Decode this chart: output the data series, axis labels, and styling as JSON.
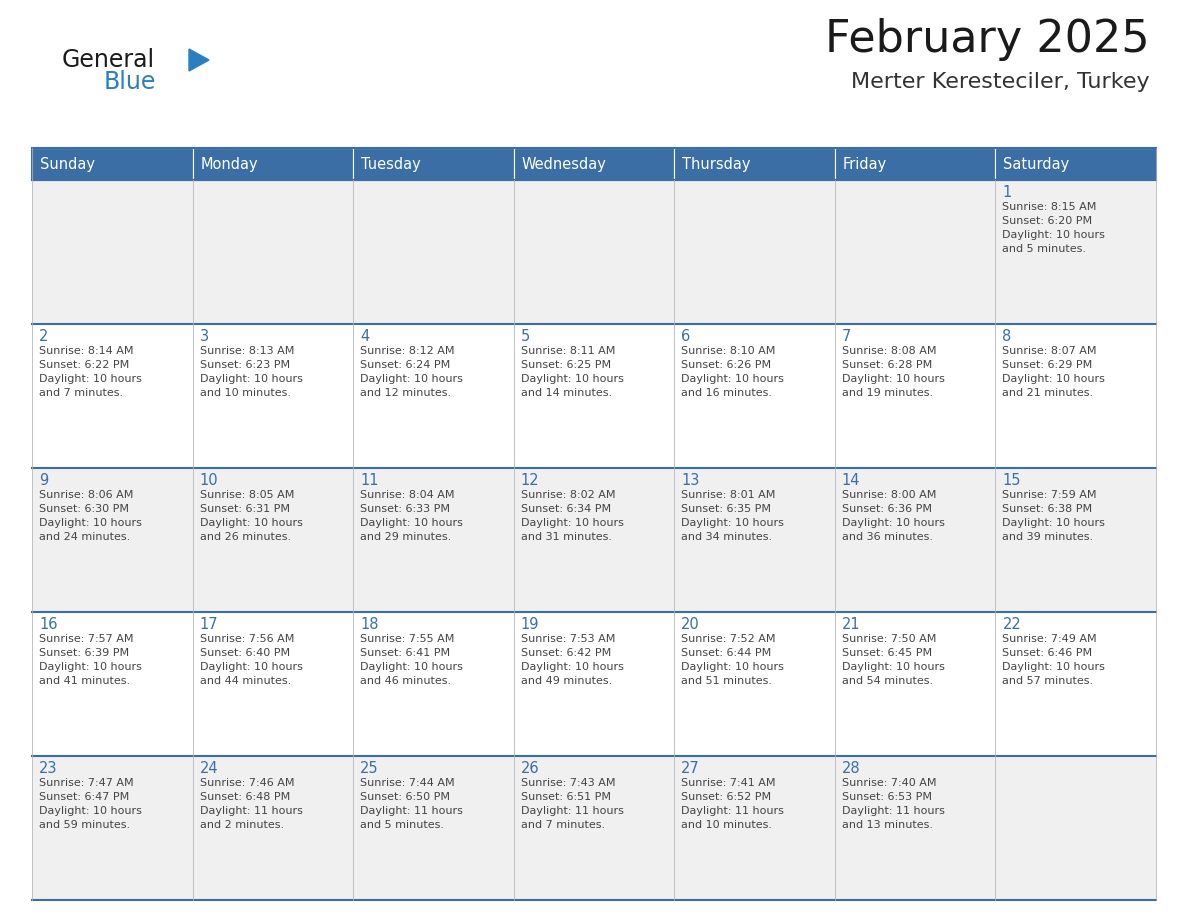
{
  "title": "February 2025",
  "subtitle": "Merter Keresteciler, Turkey",
  "days_of_week": [
    "Sunday",
    "Monday",
    "Tuesday",
    "Wednesday",
    "Thursday",
    "Friday",
    "Saturday"
  ],
  "header_bg": "#3a6ea5",
  "header_text_color": "#ffffff",
  "row_bg_odd": "#f0f0f0",
  "row_bg_even": "#ffffff",
  "cell_text_color": "#444444",
  "day_num_color": "#3a6ea5",
  "title_color": "#1a1a1a",
  "subtitle_color": "#333333",
  "logo_general_color": "#1a1a1a",
  "logo_blue_color": "#2a7fc0",
  "separator_color": "#3a6ea5",
  "cell_border_color": "#bbbbbb",
  "fig_width": 11.88,
  "fig_height": 9.18,
  "dpi": 100,
  "calendar": [
    [
      {
        "day": null,
        "sunrise": null,
        "sunset": null,
        "daylight": null
      },
      {
        "day": null,
        "sunrise": null,
        "sunset": null,
        "daylight": null
      },
      {
        "day": null,
        "sunrise": null,
        "sunset": null,
        "daylight": null
      },
      {
        "day": null,
        "sunrise": null,
        "sunset": null,
        "daylight": null
      },
      {
        "day": null,
        "sunrise": null,
        "sunset": null,
        "daylight": null
      },
      {
        "day": null,
        "sunrise": null,
        "sunset": null,
        "daylight": null
      },
      {
        "day": 1,
        "sunrise": "8:15 AM",
        "sunset": "6:20 PM",
        "daylight_line1": "Daylight: 10 hours",
        "daylight_line2": "and 5 minutes."
      }
    ],
    [
      {
        "day": 2,
        "sunrise": "8:14 AM",
        "sunset": "6:22 PM",
        "daylight_line1": "Daylight: 10 hours",
        "daylight_line2": "and 7 minutes."
      },
      {
        "day": 3,
        "sunrise": "8:13 AM",
        "sunset": "6:23 PM",
        "daylight_line1": "Daylight: 10 hours",
        "daylight_line2": "and 10 minutes."
      },
      {
        "day": 4,
        "sunrise": "8:12 AM",
        "sunset": "6:24 PM",
        "daylight_line1": "Daylight: 10 hours",
        "daylight_line2": "and 12 minutes."
      },
      {
        "day": 5,
        "sunrise": "8:11 AM",
        "sunset": "6:25 PM",
        "daylight_line1": "Daylight: 10 hours",
        "daylight_line2": "and 14 minutes."
      },
      {
        "day": 6,
        "sunrise": "8:10 AM",
        "sunset": "6:26 PM",
        "daylight_line1": "Daylight: 10 hours",
        "daylight_line2": "and 16 minutes."
      },
      {
        "day": 7,
        "sunrise": "8:08 AM",
        "sunset": "6:28 PM",
        "daylight_line1": "Daylight: 10 hours",
        "daylight_line2": "and 19 minutes."
      },
      {
        "day": 8,
        "sunrise": "8:07 AM",
        "sunset": "6:29 PM",
        "daylight_line1": "Daylight: 10 hours",
        "daylight_line2": "and 21 minutes."
      }
    ],
    [
      {
        "day": 9,
        "sunrise": "8:06 AM",
        "sunset": "6:30 PM",
        "daylight_line1": "Daylight: 10 hours",
        "daylight_line2": "and 24 minutes."
      },
      {
        "day": 10,
        "sunrise": "8:05 AM",
        "sunset": "6:31 PM",
        "daylight_line1": "Daylight: 10 hours",
        "daylight_line2": "and 26 minutes."
      },
      {
        "day": 11,
        "sunrise": "8:04 AM",
        "sunset": "6:33 PM",
        "daylight_line1": "Daylight: 10 hours",
        "daylight_line2": "and 29 minutes."
      },
      {
        "day": 12,
        "sunrise": "8:02 AM",
        "sunset": "6:34 PM",
        "daylight_line1": "Daylight: 10 hours",
        "daylight_line2": "and 31 minutes."
      },
      {
        "day": 13,
        "sunrise": "8:01 AM",
        "sunset": "6:35 PM",
        "daylight_line1": "Daylight: 10 hours",
        "daylight_line2": "and 34 minutes."
      },
      {
        "day": 14,
        "sunrise": "8:00 AM",
        "sunset": "6:36 PM",
        "daylight_line1": "Daylight: 10 hours",
        "daylight_line2": "and 36 minutes."
      },
      {
        "day": 15,
        "sunrise": "7:59 AM",
        "sunset": "6:38 PM",
        "daylight_line1": "Daylight: 10 hours",
        "daylight_line2": "and 39 minutes."
      }
    ],
    [
      {
        "day": 16,
        "sunrise": "7:57 AM",
        "sunset": "6:39 PM",
        "daylight_line1": "Daylight: 10 hours",
        "daylight_line2": "and 41 minutes."
      },
      {
        "day": 17,
        "sunrise": "7:56 AM",
        "sunset": "6:40 PM",
        "daylight_line1": "Daylight: 10 hours",
        "daylight_line2": "and 44 minutes."
      },
      {
        "day": 18,
        "sunrise": "7:55 AM",
        "sunset": "6:41 PM",
        "daylight_line1": "Daylight: 10 hours",
        "daylight_line2": "and 46 minutes."
      },
      {
        "day": 19,
        "sunrise": "7:53 AM",
        "sunset": "6:42 PM",
        "daylight_line1": "Daylight: 10 hours",
        "daylight_line2": "and 49 minutes."
      },
      {
        "day": 20,
        "sunrise": "7:52 AM",
        "sunset": "6:44 PM",
        "daylight_line1": "Daylight: 10 hours",
        "daylight_line2": "and 51 minutes."
      },
      {
        "day": 21,
        "sunrise": "7:50 AM",
        "sunset": "6:45 PM",
        "daylight_line1": "Daylight: 10 hours",
        "daylight_line2": "and 54 minutes."
      },
      {
        "day": 22,
        "sunrise": "7:49 AM",
        "sunset": "6:46 PM",
        "daylight_line1": "Daylight: 10 hours",
        "daylight_line2": "and 57 minutes."
      }
    ],
    [
      {
        "day": 23,
        "sunrise": "7:47 AM",
        "sunset": "6:47 PM",
        "daylight_line1": "Daylight: 10 hours",
        "daylight_line2": "and 59 minutes."
      },
      {
        "day": 24,
        "sunrise": "7:46 AM",
        "sunset": "6:48 PM",
        "daylight_line1": "Daylight: 11 hours",
        "daylight_line2": "and 2 minutes."
      },
      {
        "day": 25,
        "sunrise": "7:44 AM",
        "sunset": "6:50 PM",
        "daylight_line1": "Daylight: 11 hours",
        "daylight_line2": "and 5 minutes."
      },
      {
        "day": 26,
        "sunrise": "7:43 AM",
        "sunset": "6:51 PM",
        "daylight_line1": "Daylight: 11 hours",
        "daylight_line2": "and 7 minutes."
      },
      {
        "day": 27,
        "sunrise": "7:41 AM",
        "sunset": "6:52 PM",
        "daylight_line1": "Daylight: 11 hours",
        "daylight_line2": "and 10 minutes."
      },
      {
        "day": 28,
        "sunrise": "7:40 AM",
        "sunset": "6:53 PM",
        "daylight_line1": "Daylight: 11 hours",
        "daylight_line2": "and 13 minutes."
      },
      {
        "day": null,
        "sunrise": null,
        "sunset": null,
        "daylight_line1": null,
        "daylight_line2": null
      }
    ]
  ]
}
